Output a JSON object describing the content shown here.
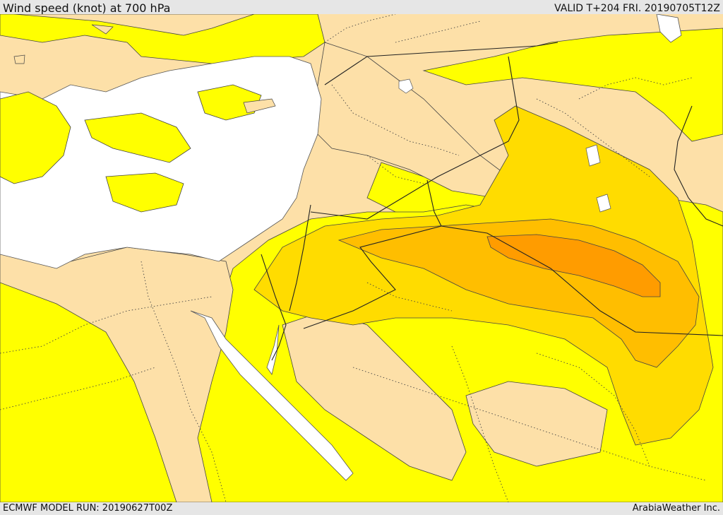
{
  "header": {
    "title": "Wind speed (knot) at 700 hPa",
    "valid": "VALID T+204 FRI. 20190705T12Z"
  },
  "footer": {
    "model_run": "ECMWF MODEL RUN: 20190627T00Z",
    "credit": "ArabiaWeather Inc."
  },
  "palette": {
    "sea": "#ffffff",
    "low_wind": "#fde0a8",
    "band_1": "#ffff00",
    "band_2": "#ffdc00",
    "band_3": "#ffbe00",
    "band_4": "#ff9c00",
    "border": "#222222",
    "coast": "#555555"
  }
}
